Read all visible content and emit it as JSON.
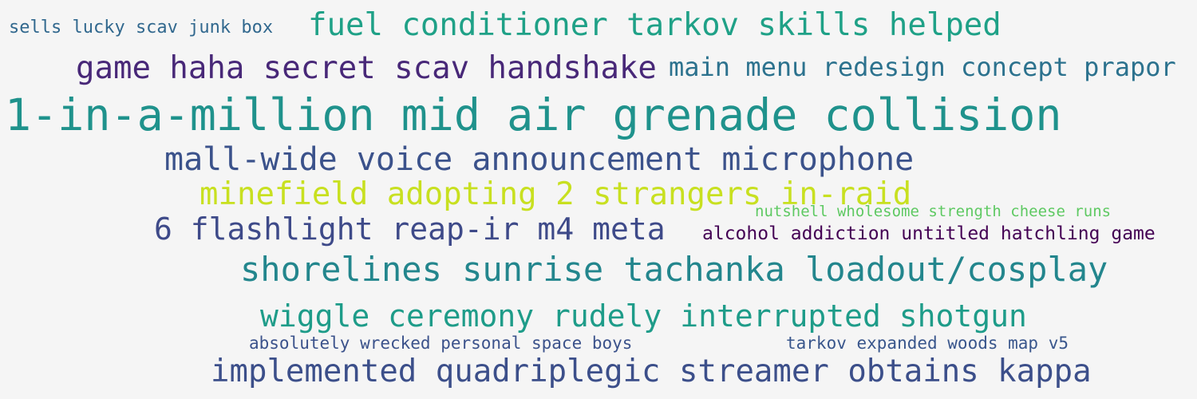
{
  "phrases": [
    {
      "text": "sells lucky scav junk box",
      "color": "#31688e"
    },
    {
      "text": "fuel conditioner tarkov skills helped",
      "color": "#1fa187"
    },
    {
      "text": "game haha secret scav handshake",
      "color": "#482878"
    },
    {
      "text": "main menu redesign concept prapor",
      "color": "#2c728e"
    },
    {
      "text": "1-in-a-million mid air grenade collision",
      "color": "#1f928c"
    },
    {
      "text": "mall-wide voice announcement microphone",
      "color": "#3b528b"
    },
    {
      "text": "minefield adopting 2 strangers in-raid",
      "color": "#c8e020"
    },
    {
      "text": "nutshell wholesome strength cheese runs",
      "color": "#5ec962"
    },
    {
      "text": "6 flashlight reap-ir m4 meta",
      "color": "#3e4a89"
    },
    {
      "text": "alcohol addiction untitled hatchling game",
      "color": "#440154"
    },
    {
      "text": "shorelines sunrise tachanka loadout/cosplay",
      "color": "#23868d"
    },
    {
      "text": "wiggle ceremony rudely interrupted shotgun",
      "color": "#1e9c89"
    },
    {
      "text": "absolutely wrecked personal space boys",
      "color": "#3b528b"
    },
    {
      "text": "tarkov expanded woods map v5",
      "color": "#39568c"
    },
    {
      "text": "implemented quadriplegic streamer obtains kappa",
      "color": "#3c4f8a"
    }
  ]
}
